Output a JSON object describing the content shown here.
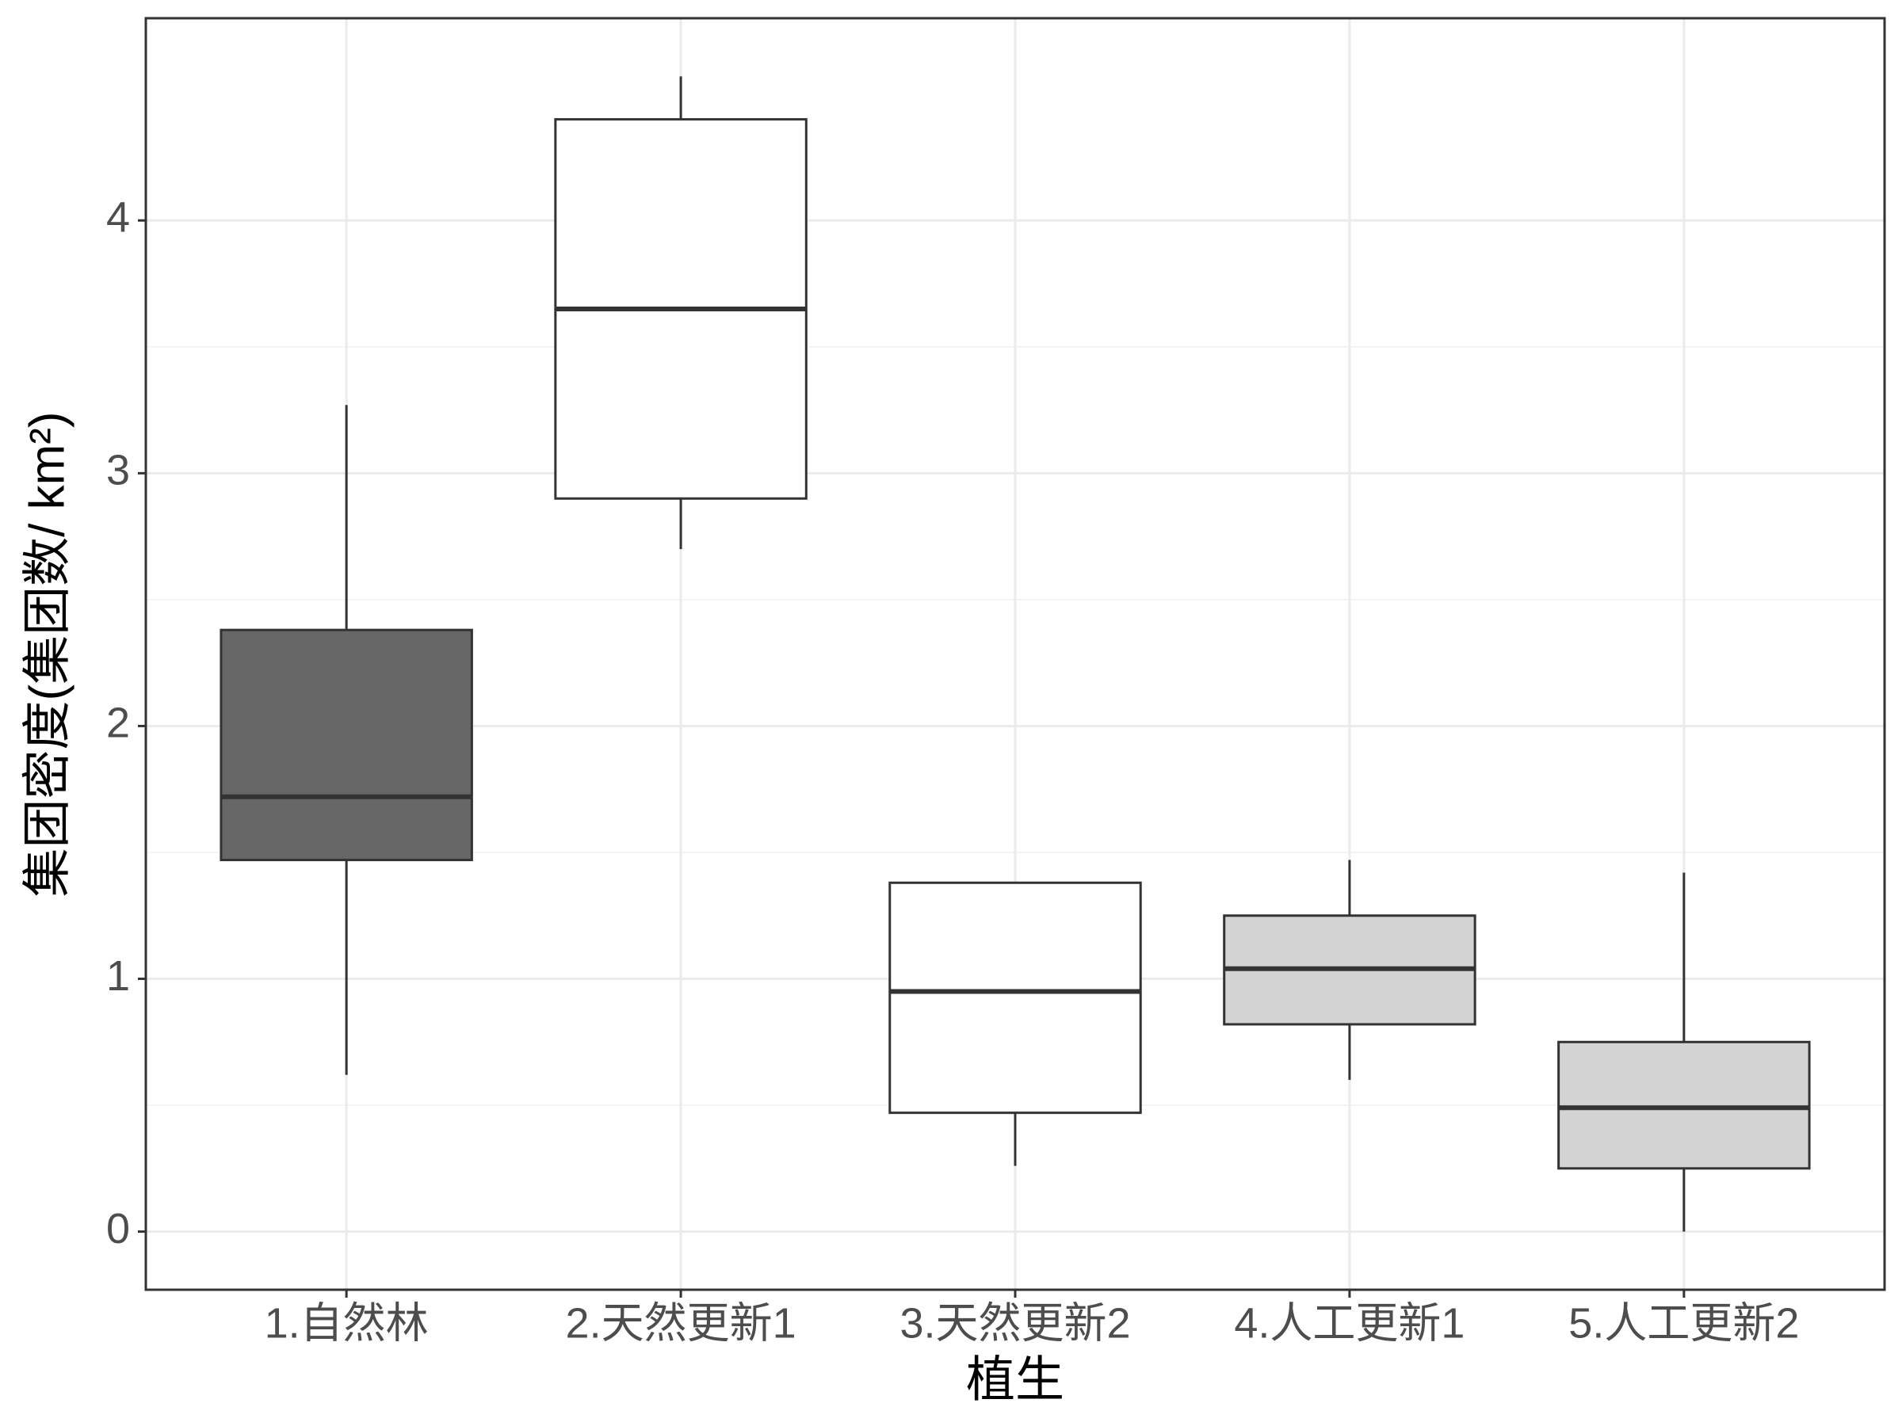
{
  "chart_data": {
    "type": "box",
    "x_label": "植生",
    "y_label": "集团密度(集团数/ km²)",
    "categories": [
      "1.自然林",
      "2.天然更新1",
      "3.天然更新2",
      "4.人工更新1",
      "5.人工更新2"
    ],
    "boxes": [
      {
        "min": 0.62,
        "q1": 1.47,
        "median": 1.72,
        "q3": 2.38,
        "max": 3.27,
        "color": "#666666"
      },
      {
        "min": 2.7,
        "q1": 2.9,
        "median": 3.65,
        "q3": 4.4,
        "max": 4.57,
        "color": "#ffffff"
      },
      {
        "min": 0.26,
        "q1": 0.47,
        "median": 0.95,
        "q3": 1.38,
        "max": 1.38,
        "color": "#ffffff"
      },
      {
        "min": 0.6,
        "q1": 0.82,
        "median": 1.04,
        "q3": 1.25,
        "max": 1.47,
        "color": "#d3d3d3"
      },
      {
        "min": 0.0,
        "q1": 0.25,
        "median": 0.49,
        "q3": 0.75,
        "max": 1.42,
        "color": "#d3d3d3"
      }
    ],
    "ylim": [
      -0.23,
      4.8
    ],
    "yticks": [
      0,
      1,
      2,
      3,
      4
    ],
    "grid": true
  }
}
